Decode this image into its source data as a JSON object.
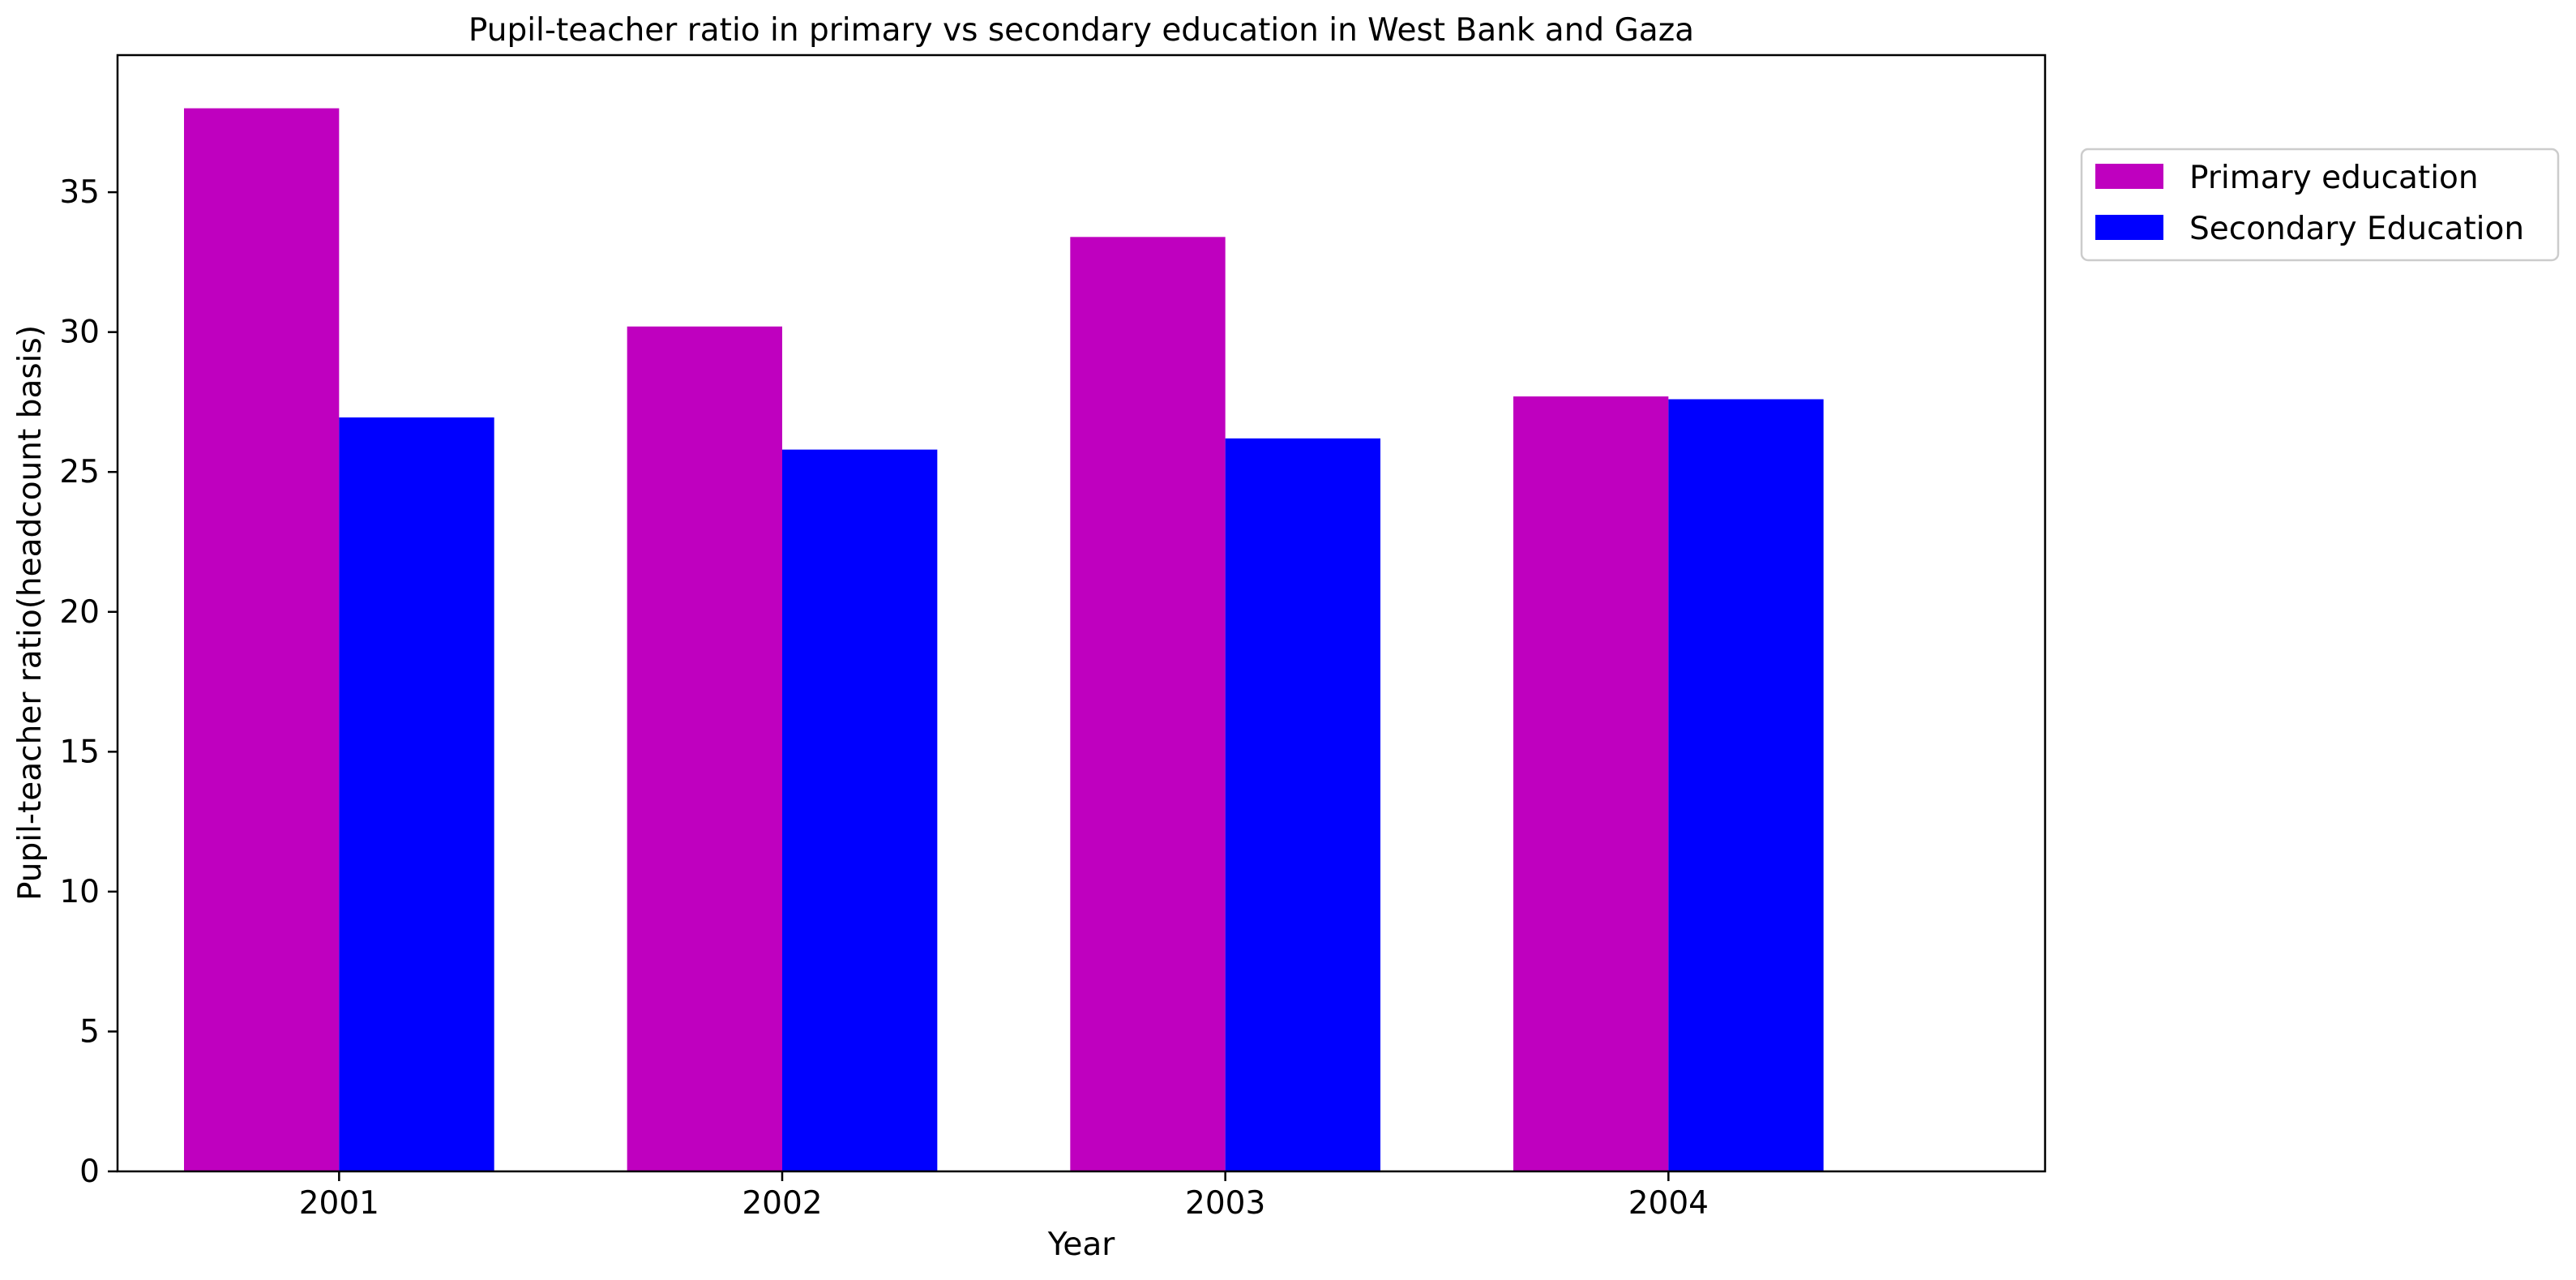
{
  "chart_data": {
    "type": "bar",
    "title": "Pupil-teacher ratio in primary vs secondary education in West Bank and Gaza",
    "xlabel": "Year",
    "ylabel": "Pupil-teacher ratio(headcount basis)",
    "categories": [
      "2001",
      "2002",
      "2003",
      "2004"
    ],
    "series": [
      {
        "name": "Primary education",
        "color": "#bf00bf",
        "values": [
          38.0,
          30.2,
          33.4,
          27.7
        ]
      },
      {
        "name": "Secondary Education",
        "color": "#0000ff",
        "values": [
          26.95,
          25.8,
          26.2,
          27.6
        ]
      }
    ],
    "ylim": [
      0,
      39.9
    ],
    "yticks": [
      0,
      5,
      10,
      15,
      20,
      25,
      30,
      35
    ],
    "grid": false,
    "legend_position": "outside top-right"
  }
}
